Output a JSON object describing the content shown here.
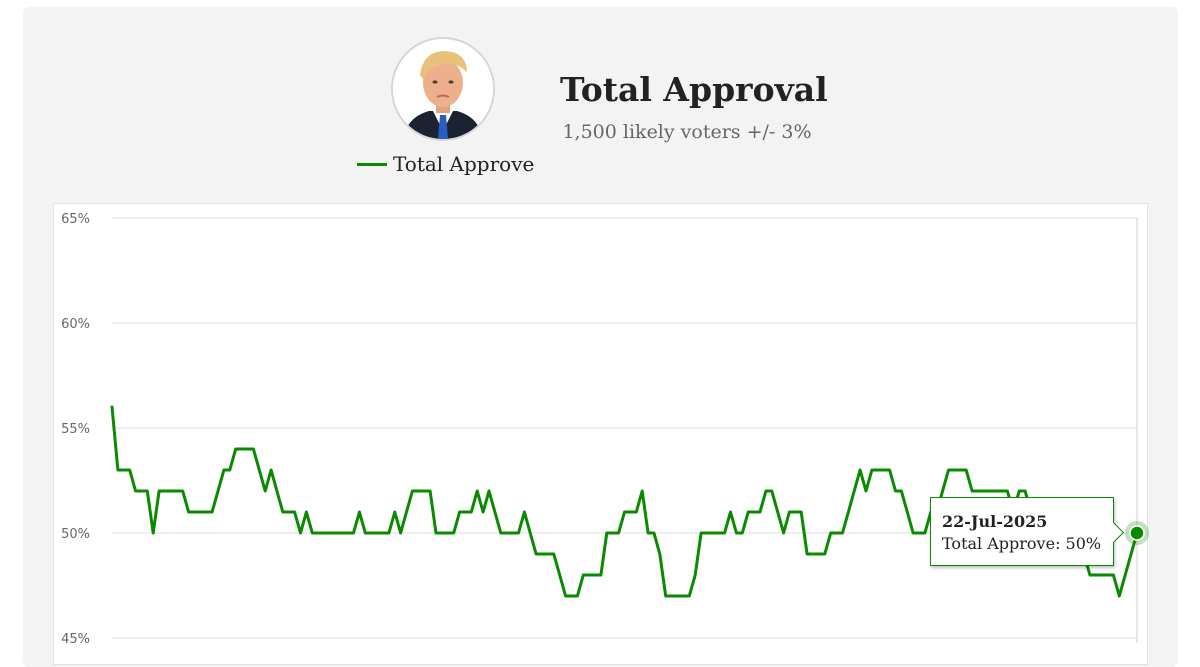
{
  "header": {
    "title": "Total Approval",
    "subtitle": "1,500 likely voters +/- 3%",
    "avatar_icon": "portrait-photo"
  },
  "legend": {
    "label": "Total Approve",
    "color": "#0a8a00"
  },
  "tooltip": {
    "date": "22-Jul-2025",
    "label": "Total Approve: 50%",
    "value": 50
  },
  "chart_data": {
    "type": "line",
    "title": "Total Approval",
    "subtitle": "1,500 likely voters +/- 3%",
    "xlabel": "",
    "ylabel": "",
    "ylim": [
      45,
      65
    ],
    "yticks": [
      45,
      50,
      55,
      60,
      65
    ],
    "ytick_labels": [
      "45%",
      "50%",
      "55%",
      "60%",
      "65%"
    ],
    "grid": true,
    "legend_position": "top",
    "series": [
      {
        "name": "Total Approve",
        "color": "#0a8a00",
        "values": [
          56,
          53,
          53,
          53,
          52,
          52,
          52,
          50,
          52,
          52,
          52,
          52,
          52,
          51,
          51,
          51,
          51,
          51,
          52,
          53,
          53,
          54,
          54,
          54,
          54,
          53,
          52,
          53,
          52,
          51,
          51,
          51,
          50,
          51,
          50,
          50,
          50,
          50,
          50,
          50,
          50,
          50,
          51,
          50,
          50,
          50,
          50,
          50,
          51,
          50,
          51,
          52,
          52,
          52,
          52,
          50,
          50,
          50,
          50,
          51,
          51,
          51,
          52,
          51,
          52,
          51,
          50,
          50,
          50,
          50,
          51,
          50,
          49,
          49,
          49,
          49,
          48,
          47,
          47,
          47,
          48,
          48,
          48,
          48,
          50,
          50,
          50,
          51,
          51,
          51,
          52,
          50,
          50,
          49,
          47,
          47,
          47,
          47,
          47,
          48,
          50,
          50,
          50,
          50,
          50,
          51,
          50,
          50,
          51,
          51,
          51,
          52,
          52,
          51,
          50,
          51,
          51,
          51,
          49,
          49,
          49,
          49,
          50,
          50,
          50,
          51,
          52,
          53,
          52,
          53,
          53,
          53,
          53,
          52,
          52,
          51,
          50,
          50,
          50,
          51,
          51,
          52,
          53,
          53,
          53,
          53,
          52,
          52,
          52,
          52,
          52,
          52,
          52,
          51,
          52,
          52,
          51,
          51,
          51,
          51,
          51,
          50,
          50,
          50,
          50,
          49,
          48,
          48,
          48,
          48,
          48,
          47,
          48,
          49,
          50
        ]
      }
    ]
  }
}
